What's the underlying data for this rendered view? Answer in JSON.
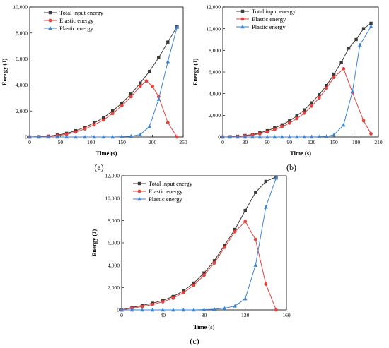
{
  "chart_data": [
    {
      "type": "line",
      "panel_label": "(a)",
      "xlabel": "Time (s)",
      "ylabel": "Energy (J)",
      "xlim": [
        0,
        250
      ],
      "ylim": [
        0,
        10000
      ],
      "xticks": [
        0,
        50,
        100,
        150,
        200,
        250
      ],
      "xtick_labels": [
        "0",
        "50",
        "100",
        "150",
        "200",
        "250"
      ],
      "yticks": [
        0,
        2000,
        4000,
        6000,
        8000,
        10000
      ],
      "ytick_labels": [
        "0",
        "2,000",
        "4,000",
        "6,000",
        "8,000",
        "10,000"
      ],
      "grid": false,
      "legend_position": "top-left",
      "series": [
        {
          "name": "Total input energy",
          "color": "#3a3a3a",
          "marker": "square",
          "x": [
            0,
            15,
            30,
            45,
            60,
            75,
            90,
            105,
            120,
            135,
            150,
            165,
            180,
            195,
            210,
            225,
            240
          ],
          "y": [
            0,
            20,
            60,
            150,
            280,
            480,
            750,
            1080,
            1480,
            2000,
            2600,
            3300,
            4150,
            5050,
            6100,
            7300,
            8500
          ]
        },
        {
          "name": "Elastic energy",
          "color": "#e8423c",
          "marker": "circle",
          "x": [
            0,
            15,
            30,
            45,
            60,
            75,
            90,
            105,
            120,
            135,
            150,
            165,
            180,
            190,
            200,
            210,
            225,
            240
          ],
          "y": [
            0,
            10,
            35,
            100,
            200,
            380,
            620,
            930,
            1300,
            1800,
            2400,
            3100,
            3900,
            4300,
            3900,
            3100,
            1100,
            0
          ]
        },
        {
          "name": "Plastic energy",
          "color": "#3a84d4",
          "marker": "triangle",
          "x": [
            0,
            15,
            30,
            45,
            60,
            75,
            90,
            105,
            120,
            135,
            150,
            165,
            180,
            195,
            210,
            225,
            240
          ],
          "y": [
            0,
            0,
            0,
            0,
            0,
            0,
            0,
            0,
            0,
            0,
            20,
            60,
            180,
            800,
            2900,
            5800,
            8450
          ]
        }
      ]
    },
    {
      "type": "line",
      "panel_label": "(b)",
      "xlabel": "Time (s)",
      "ylabel": "Energy (J)",
      "xlim": [
        0,
        210
      ],
      "ylim": [
        0,
        12000
      ],
      "xticks": [
        0,
        30,
        60,
        90,
        120,
        150,
        180,
        210
      ],
      "xtick_labels": [
        "0",
        "30",
        "60",
        "90",
        "120",
        "150",
        "180",
        "210"
      ],
      "yticks": [
        0,
        2000,
        4000,
        6000,
        8000,
        10000,
        12000
      ],
      "ytick_labels": [
        "0",
        "2,000",
        "4,000",
        "6,000",
        "8,000",
        "10,000",
        "12,000"
      ],
      "grid": false,
      "legend_position": "top-left",
      "series": [
        {
          "name": "Total input energy",
          "color": "#3a3a3a",
          "marker": "square",
          "x": [
            0,
            10,
            20,
            30,
            40,
            50,
            60,
            70,
            80,
            90,
            100,
            110,
            120,
            130,
            140,
            150,
            160,
            170,
            180,
            190,
            200
          ],
          "y": [
            0,
            20,
            60,
            130,
            230,
            380,
            580,
            830,
            1120,
            1480,
            1950,
            2500,
            3150,
            3900,
            4750,
            5800,
            6900,
            8200,
            9000,
            10000,
            10500
          ]
        },
        {
          "name": "Elastic energy",
          "color": "#e8423c",
          "marker": "circle",
          "x": [
            0,
            10,
            20,
            30,
            40,
            50,
            60,
            70,
            80,
            90,
            100,
            110,
            120,
            130,
            140,
            150,
            163,
            175,
            190,
            200
          ],
          "y": [
            0,
            10,
            40,
            90,
            170,
            290,
            460,
            680,
            950,
            1280,
            1700,
            2200,
            2850,
            3600,
            4500,
            5500,
            6300,
            4100,
            1500,
            300
          ]
        },
        {
          "name": "Plastic energy",
          "color": "#3a84d4",
          "marker": "triangle",
          "x": [
            0,
            10,
            20,
            30,
            40,
            50,
            60,
            70,
            80,
            90,
            100,
            110,
            120,
            130,
            140,
            150,
            163,
            175,
            185,
            200
          ],
          "y": [
            0,
            0,
            0,
            0,
            0,
            0,
            0,
            0,
            0,
            0,
            0,
            0,
            0,
            20,
            60,
            200,
            1100,
            4200,
            8500,
            10200
          ]
        }
      ]
    },
    {
      "type": "line",
      "panel_label": "(c)",
      "xlabel": "Time (s)",
      "ylabel": "Energy (J)",
      "xlim": [
        0,
        160
      ],
      "ylim": [
        0,
        12000
      ],
      "xticks": [
        0,
        40,
        80,
        120,
        160
      ],
      "xtick_labels": [
        "0",
        "40",
        "80",
        "120",
        "160"
      ],
      "yticks": [
        0,
        2000,
        4000,
        6000,
        8000,
        10000,
        12000
      ],
      "ytick_labels": [
        "0",
        "2,000",
        "4,000",
        "6,000",
        "8,000",
        "10,000",
        "12,000"
      ],
      "grid": false,
      "legend_position": "top-left",
      "series": [
        {
          "name": "Total input energy",
          "color": "#3a3a3a",
          "marker": "square",
          "x": [
            0,
            10,
            20,
            30,
            40,
            50,
            60,
            70,
            80,
            90,
            100,
            110,
            120,
            130,
            140,
            150
          ],
          "y": [
            0,
            220,
            400,
            600,
            850,
            1200,
            1700,
            2400,
            3300,
            4400,
            5800,
            7200,
            8900,
            10500,
            11500,
            11900
          ]
        },
        {
          "name": "Elastic energy",
          "color": "#e8423c",
          "marker": "circle",
          "x": [
            0,
            10,
            20,
            30,
            40,
            50,
            60,
            70,
            80,
            90,
            100,
            110,
            120,
            130,
            140,
            150
          ],
          "y": [
            0,
            150,
            300,
            480,
            730,
            1050,
            1550,
            2200,
            3100,
            4200,
            5600,
            7000,
            7900,
            6300,
            2300,
            0
          ]
        },
        {
          "name": "Plastic energy",
          "color": "#3a84d4",
          "marker": "triangle",
          "x": [
            0,
            10,
            20,
            30,
            40,
            50,
            60,
            70,
            80,
            90,
            100,
            110,
            120,
            130,
            140,
            150
          ],
          "y": [
            0,
            0,
            0,
            0,
            0,
            0,
            0,
            0,
            20,
            60,
            150,
            350,
            1000,
            4000,
            9200,
            11800
          ]
        }
      ]
    }
  ]
}
